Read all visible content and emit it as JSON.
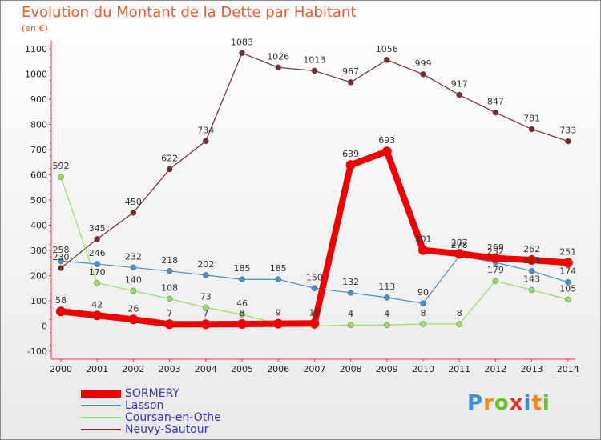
{
  "header": {
    "title": "Evolution du Montant de la Dette par Habitant",
    "subtitle": "(en €)"
  },
  "brand": {
    "name": "Proxiti",
    "letter_colors": [
      "#3b8fd8",
      "#f08a1c",
      "#6cbf2a",
      "#e2332b",
      "#3b8fd8",
      "#f08a1c",
      "#6cbf2a"
    ]
  },
  "chart_data": {
    "type": "line",
    "title": "Evolution du Montant de la Dette par Habitant",
    "subtitle": "(en €)",
    "xlabel": "",
    "ylabel": "",
    "x": [
      "2000",
      "2001",
      "2002",
      "2003",
      "2004",
      "2005",
      "2006",
      "2007",
      "2008",
      "2009",
      "2010",
      "2011",
      "2012",
      "2013",
      "2014"
    ],
    "ylim": [
      -100,
      1100
    ],
    "yticks": [
      -100,
      0,
      100,
      200,
      300,
      400,
      500,
      600,
      700,
      800,
      900,
      1000,
      1100
    ],
    "grid": false,
    "legend_position": "bottom-left",
    "series": [
      {
        "name": "SORMERY",
        "color": "#ee0000",
        "values": [
          58,
          42,
          26,
          7,
          7,
          8,
          9,
          10,
          639,
          693,
          301,
          287,
          269,
          262,
          251
        ],
        "labels": [
          "58",
          "42",
          "26",
          "7",
          "7",
          "8",
          "9",
          "10",
          "639",
          "693",
          "301",
          "287",
          "269",
          "262",
          "251"
        ]
      },
      {
        "name": "Lasson",
        "color": "#4a8fc8",
        "values": [
          258,
          246,
          232,
          218,
          202,
          185,
          185,
          150,
          132,
          113,
          90,
          278,
          252,
          218,
          174
        ],
        "labels": [
          "258",
          "246",
          "232",
          "218",
          "202",
          "185",
          "185",
          "150",
          "132",
          "113",
          "90",
          "278",
          "252",
          "218",
          "174"
        ]
      },
      {
        "name": "Coursan-en-Othe",
        "color": "#99dd66",
        "values": [
          592,
          170,
          140,
          108,
          73,
          46,
          8,
          0,
          4,
          4,
          8,
          8,
          179,
          143,
          105
        ],
        "labels": [
          "592",
          "170",
          "140",
          "108",
          "73",
          "46",
          "",
          "0",
          "4",
          "4",
          "8",
          "8",
          "179",
          "143",
          "105"
        ]
      },
      {
        "name": "Neuvy-Sautour",
        "color": "#7a2a2a",
        "values": [
          230,
          345,
          450,
          622,
          734,
          1083,
          1026,
          1013,
          967,
          1056,
          999,
          917,
          847,
          781,
          733
        ],
        "labels": [
          "230",
          "345",
          "450",
          "622",
          "734",
          "1083",
          "1026",
          "1013",
          "967",
          "1056",
          "999",
          "917",
          "847",
          "781",
          "733"
        ]
      }
    ]
  }
}
